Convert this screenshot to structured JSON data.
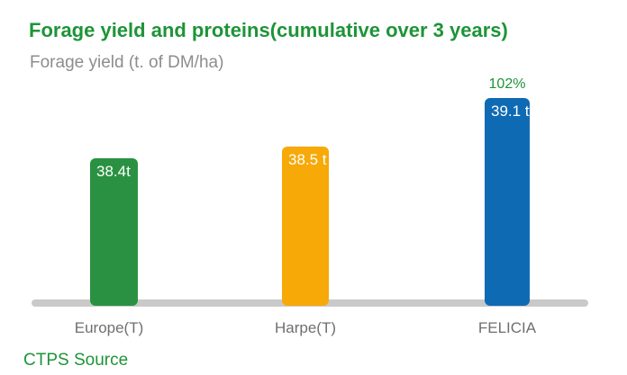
{
  "page": {
    "title": "Forage yield and proteins(cumulative over 3 years)",
    "subtitle": "Forage yield (t. of DM/ha)",
    "source": "CTPS Source"
  },
  "colors": {
    "text_green": "#1e9438",
    "bar_green": "#2b9142",
    "bar_orange": "#f7a908",
    "bar_blue": "#0f6ab4",
    "axis_gray": "#c9c9c9",
    "subtitle_gray": "#8d8d8d",
    "category_label_gray": "#6f6f6f",
    "value_label_white": "#ffffff",
    "background": "#ffffff"
  },
  "chart_data": {
    "type": "bar",
    "title": "Forage yield and proteins(cumulative over 3 years)",
    "subtitle": "Forage yield (t. of DM/ha)",
    "categories": [
      "Europe(T)",
      "Harpe(T)",
      "FELICIA"
    ],
    "values": [
      38.4,
      38.5,
      39.1
    ],
    "unit": "t of DM/ha",
    "bars": [
      {
        "category": "Europe(T)",
        "value": 38.4,
        "value_label": "38.4t",
        "color": "#2b9142",
        "annotation": ""
      },
      {
        "category": "Harpe(T)",
        "value": 38.5,
        "value_label": "38.5 t",
        "color": "#f7a908",
        "annotation": ""
      },
      {
        "category": "FELICIA",
        "value": 39.1,
        "value_label": "39.1 t",
        "color": "#0f6ab4",
        "annotation": "102%"
      }
    ],
    "annotations": [
      {
        "text": "102%",
        "target_category": "FELICIA",
        "position": "above-bar"
      }
    ],
    "legend": "none",
    "grid": false,
    "axis": "single horizontal gray baseline, no ticks, no y-axis",
    "source": "CTPS Source"
  }
}
